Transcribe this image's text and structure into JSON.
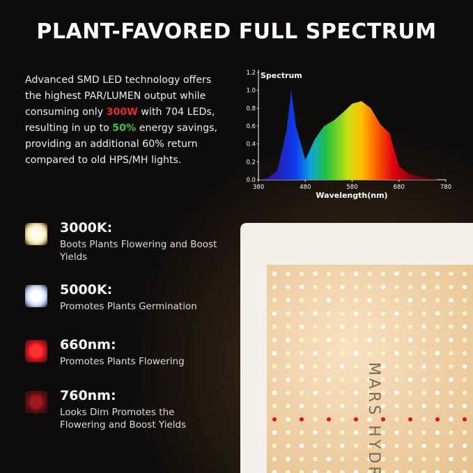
{
  "header": {
    "title": "PLANT-FAVORED FULL SPECTRUM"
  },
  "intro": {
    "parts": [
      "Advanced SMD LED technology offers the highest PAR/LUMEN output while consuming only ",
      "300W",
      " with 704 LEDs, resulting in up to ",
      "50%",
      " energy savings, providing an additional 60% return compared to old HPS/MH lights."
    ]
  },
  "spectrum": {
    "type": "area",
    "title": "Spectrum",
    "x_label": "Wavelength(nm)",
    "x": [
      380,
      400,
      420,
      440,
      450,
      460,
      480,
      500,
      520,
      540,
      560,
      580,
      600,
      620,
      640,
      660,
      680,
      700,
      720,
      740,
      760
    ],
    "values": [
      0,
      0.02,
      0.1,
      0.55,
      1.0,
      0.6,
      0.22,
      0.45,
      0.6,
      0.66,
      0.75,
      0.85,
      0.88,
      0.8,
      0.62,
      0.52,
      0.15,
      0.07,
      0.04,
      0.02,
      0.01
    ],
    "xlim": [
      380,
      780
    ],
    "xticks": [
      380,
      480,
      580,
      680,
      780
    ],
    "ylim": [
      0,
      1.2
    ],
    "yticks": [
      {
        "value": 0,
        "label": "0.0"
      },
      0.2,
      0.4,
      0.6,
      0.8,
      {
        "value": 1,
        "label": "1.0"
      },
      1.2
    ]
  },
  "features": [
    {
      "title": "3000K:",
      "description": "Boots Plants Flowering and Boost Yields"
    },
    {
      "title": "5000K:",
      "description": "Promotes Plants Germination"
    },
    {
      "title": "660nm:",
      "description": "Promotes Plants Flowering"
    },
    {
      "title": "760nm:",
      "description": "Looks Dim Promotes the Flowering and Boost Yields"
    }
  ],
  "panel": {
    "brand": "MARS HYDRO"
  }
}
